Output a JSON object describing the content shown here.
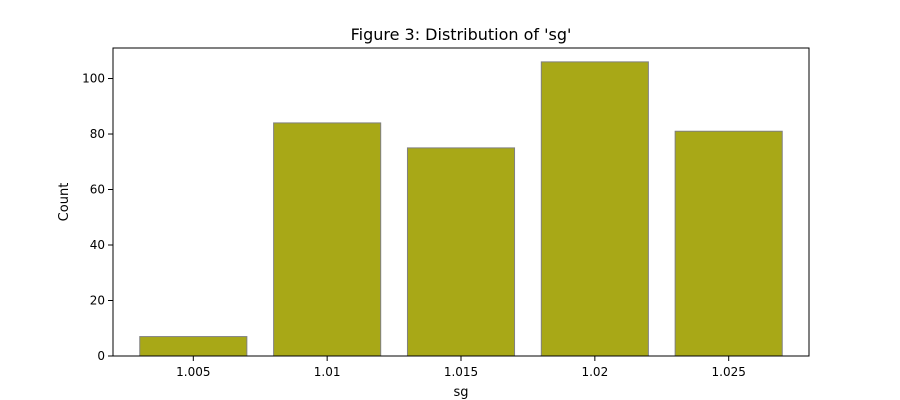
{
  "chart_data": {
    "type": "bar",
    "title": "Figure 3: Distribution of 'sg'",
    "xlabel": "sg",
    "ylabel": "Count",
    "categories": [
      "1.005",
      "1.01",
      "1.015",
      "1.02",
      "1.025"
    ],
    "values": [
      7,
      84,
      75,
      106,
      81
    ],
    "ylim": [
      0,
      111
    ],
    "yticks": [
      0,
      20,
      40,
      60,
      80,
      100
    ],
    "grid": false,
    "legend": "none",
    "bar_color": "#a8a817",
    "bar_edge_color": "#808080"
  }
}
